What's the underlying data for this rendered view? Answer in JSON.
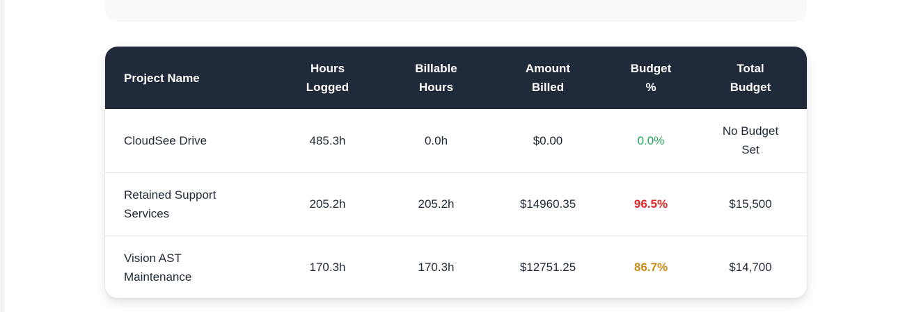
{
  "table": {
    "headers": [
      {
        "key": "project",
        "label": "Project Name"
      },
      {
        "key": "hours_logged",
        "label": "Hours Logged"
      },
      {
        "key": "billable_hours",
        "label": "Billable Hours"
      },
      {
        "key": "amount_billed",
        "label": "Amount Billed"
      },
      {
        "key": "budget_pct",
        "label": "Budget %"
      },
      {
        "key": "total_budget",
        "label": "Total Budget"
      }
    ],
    "rows": [
      {
        "project": "CloudSee Drive",
        "hours_logged": "485.3h",
        "billable_hours": "0.0h",
        "amount_billed": "$0.00",
        "budget_pct": "0.0%",
        "total_budget": "No Budget Set",
        "status_color": "#22a35a"
      },
      {
        "project": "Retained Support Services",
        "hours_logged": "205.2h",
        "billable_hours": "205.2h",
        "amount_billed": "$14960.35",
        "budget_pct": "96.5%",
        "total_budget": "$15,500",
        "status_color": "#dc2626"
      },
      {
        "project": "Vision AST Maintenance",
        "hours_logged": "170.3h",
        "billable_hours": "170.3h",
        "amount_billed": "$12751.25",
        "budget_pct": "86.7%",
        "total_budget": "$14,700",
        "status_color": "#c98a16"
      }
    ]
  },
  "colors": {
    "header_bg": "#1f2a3a",
    "panel_bg": "#f8f9fb"
  }
}
